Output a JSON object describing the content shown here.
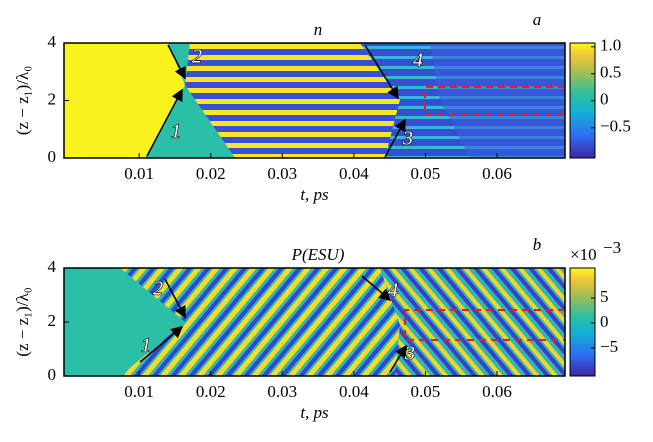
{
  "chart_data": [
    {
      "type": "heatmap",
      "title": "n",
      "panel_label": "a",
      "xlabel": "t, ps",
      "ylabel": "(z − z₁)/λ₀",
      "xlim": [
        -0.0005,
        0.0695
      ],
      "xticks": [
        0.01,
        0.02,
        0.03,
        0.04,
        0.05,
        0.06
      ],
      "ylim": [
        0,
        4
      ],
      "yticks": [
        0,
        2,
        4
      ],
      "colorbar": {
        "lim": [
          -1.06,
          1.07
        ],
        "ticks": [
          {
            "value": 1,
            "label": "1.0"
          },
          0.5,
          0,
          {
            "value": -0.5,
            "label": "−0.5"
          }
        ]
      },
      "annotations": [
        "1",
        "2",
        "3",
        "4"
      ]
    },
    {
      "type": "heatmap",
      "title": "P(ESU)",
      "panel_label": "b",
      "xlabel": "t, ps",
      "ylabel": "(z − z₁)/λ₀",
      "xlim": [
        -0.0005,
        0.0695
      ],
      "xticks": [
        0.01,
        0.02,
        0.03,
        0.04,
        0.05,
        0.06
      ],
      "ylim": [
        0,
        4
      ],
      "yticks": [
        0,
        2,
        4
      ],
      "colorbar": {
        "lim": [
          -10.6,
          11
        ],
        "ticks": [
          5,
          0,
          {
            "value": -5,
            "label": "−5"
          }
        ],
        "scale": "×10",
        "exponent": "−3"
      },
      "annotations": [
        "1",
        "2",
        "3",
        "4"
      ]
    }
  ]
}
